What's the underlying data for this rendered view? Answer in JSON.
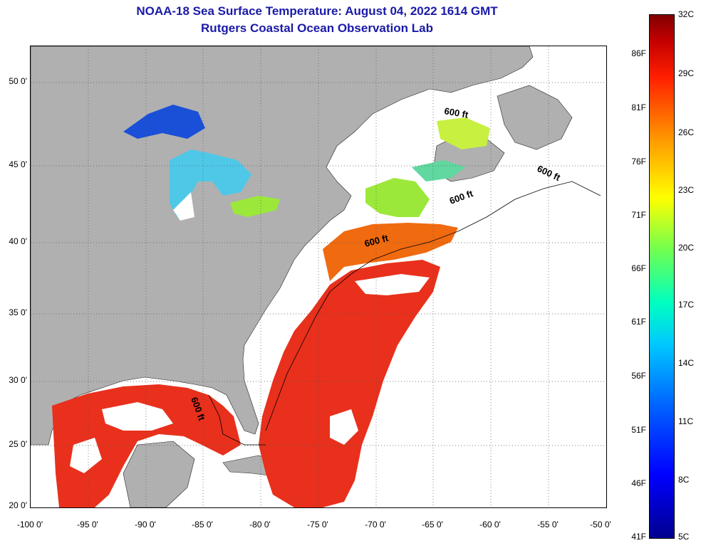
{
  "title": {
    "line1": "NOAA-18 Sea Surface Temperature:  August 04, 2022 1614 GMT",
    "line2": "Rutgers Coastal Ocean Observation Lab"
  },
  "map": {
    "lon_range": [
      -100,
      -50
    ],
    "lat_range": [
      20,
      52
    ],
    "lon_ticks": [
      "-100 0'",
      "-95 0'",
      "-90 0'",
      "-85 0'",
      "-80 0'",
      "-75 0'",
      "-70 0'",
      "-65 0'",
      "-60 0'",
      "-55 0'",
      "-50 0'"
    ],
    "lat_ticks": [
      "50 0'",
      "45 0'",
      "40 0'",
      "35 0'",
      "30 0'",
      "25 0'",
      "20 0'"
    ],
    "contour_label": "600 ft",
    "colors": {
      "land": "#b0b0b0",
      "no_data": "#ffffff",
      "gulf_stream": "#e8301c",
      "warm_shelf": "#f06a10",
      "cool_water": "#9be83a",
      "cold_lake": "#1a4fd8"
    }
  },
  "colorbar": {
    "celsius": [
      "32C",
      "29C",
      "26C",
      "23C",
      "20C",
      "17C",
      "14C",
      "11C",
      "8C",
      "5C"
    ],
    "fahrenheit": [
      "86F",
      "81F",
      "76F",
      "71F",
      "66F",
      "61F",
      "56F",
      "51F",
      "46F",
      "41F"
    ],
    "min_c": 5,
    "max_c": 32
  }
}
